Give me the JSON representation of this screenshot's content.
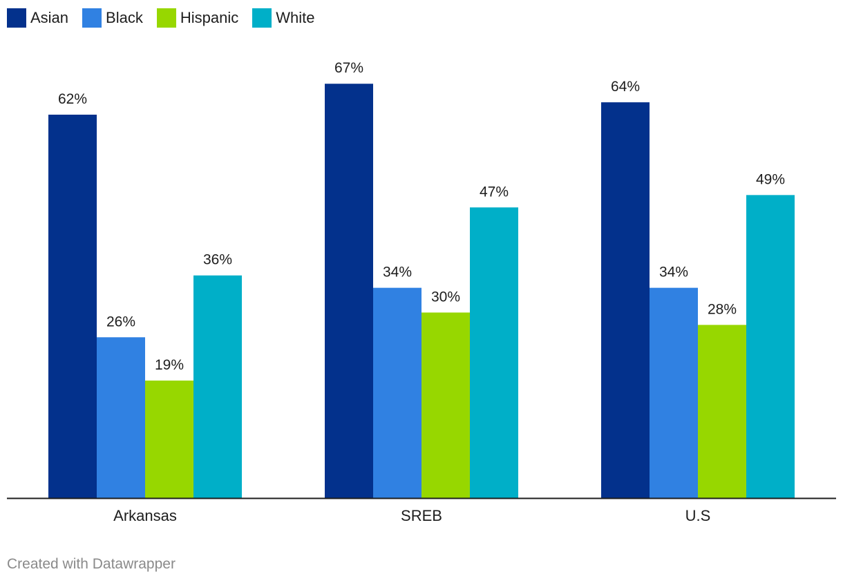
{
  "chart_data": {
    "type": "bar",
    "categories": [
      "Arkansas",
      "SREB",
      "U.S"
    ],
    "series": [
      {
        "name": "Asian",
        "color": "#03318c",
        "values": [
          62,
          67,
          64
        ]
      },
      {
        "name": "Black",
        "color": "#3081e2",
        "values": [
          26,
          34,
          34
        ]
      },
      {
        "name": "Hispanic",
        "color": "#97d700",
        "values": [
          19,
          30,
          28
        ]
      },
      {
        "name": "White",
        "color": "#00afc8",
        "values": [
          36,
          47,
          49
        ]
      }
    ],
    "value_suffix": "%",
    "ylim": [
      0,
      100
    ],
    "title": "",
    "xlabel": "",
    "ylabel": "",
    "grid": false,
    "legend_position": "top-left"
  },
  "footer": {
    "credit": "Created with Datawrapper"
  }
}
